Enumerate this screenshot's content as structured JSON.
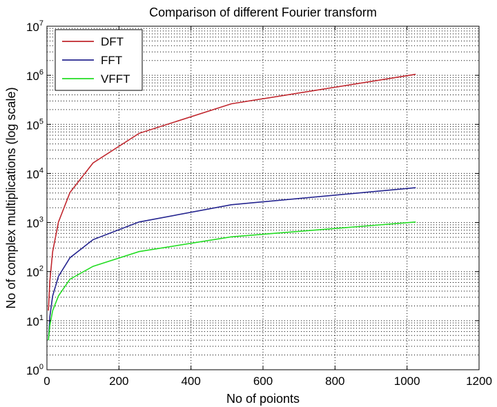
{
  "chart_data": {
    "type": "line",
    "title": "Comparison of different Fourier transform",
    "xlabel": "No of poionts",
    "ylabel": "No of complex multiplications (log scale)",
    "xlim": [
      0,
      1200
    ],
    "ylim": [
      1,
      10000000
    ],
    "yscale": "log",
    "xticks": [
      0,
      200,
      400,
      600,
      800,
      1000,
      1200
    ],
    "yticks": [
      {
        "base": "10",
        "exp": "0",
        "value": 1
      },
      {
        "base": "10",
        "exp": "1",
        "value": 10
      },
      {
        "base": "10",
        "exp": "2",
        "value": 100
      },
      {
        "base": "10",
        "exp": "3",
        "value": 1000
      },
      {
        "base": "10",
        "exp": "4",
        "value": 10000
      },
      {
        "base": "10",
        "exp": "5",
        "value": 100000
      },
      {
        "base": "10",
        "exp": "6",
        "value": 1000000
      },
      {
        "base": "10",
        "exp": "7",
        "value": 10000000
      }
    ],
    "grid": true,
    "legend_position": "top-left",
    "series": [
      {
        "name": "DFT",
        "color": "#c0262d",
        "x": [
          4,
          8,
          16,
          32,
          64,
          128,
          256,
          512,
          1024
        ],
        "y": [
          16,
          64,
          256,
          1024,
          4096,
          16384,
          65536,
          262144,
          1048576
        ]
      },
      {
        "name": "FFT",
        "color": "#24248f",
        "x": [
          4,
          8,
          16,
          32,
          64,
          128,
          256,
          512,
          1024
        ],
        "y": [
          4,
          12,
          32,
          80,
          192,
          448,
          1024,
          2304,
          5120
        ]
      },
      {
        "name": "VFFT",
        "color": "#22dd22",
        "x": [
          4,
          8,
          16,
          32,
          64,
          128,
          256,
          512,
          1024
        ],
        "y": [
          4,
          8,
          16,
          32,
          70,
          128,
          256,
          512,
          1024
        ]
      }
    ]
  }
}
